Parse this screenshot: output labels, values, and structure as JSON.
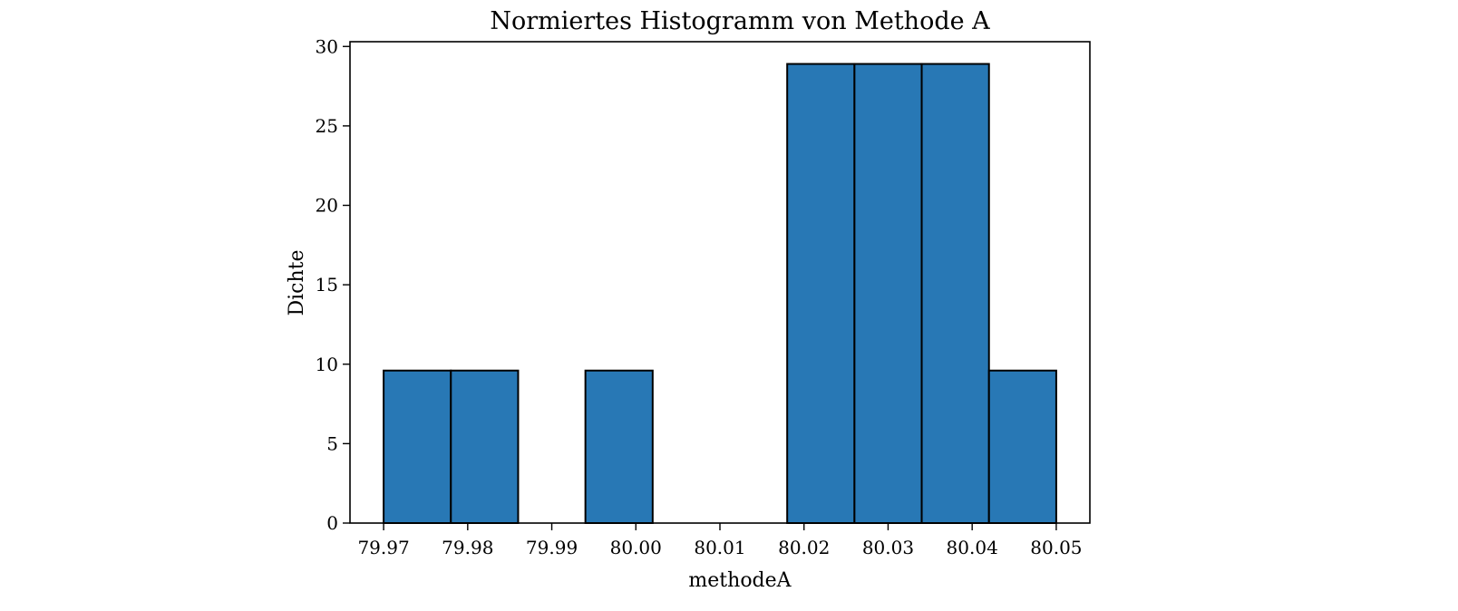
{
  "chart_data": {
    "type": "bar",
    "subtype": "histogram",
    "title": "Normiertes Histogramm von Methode A",
    "xlabel": "methodeA",
    "ylabel": "Dichte",
    "bin_edges": [
      79.97,
      79.978,
      79.986,
      79.994,
      80.002,
      80.01,
      80.018,
      80.026,
      80.034,
      80.042,
      80.05
    ],
    "values": [
      9.6,
      9.6,
      0,
      9.6,
      0,
      0,
      28.9,
      28.9,
      28.9,
      9.6
    ],
    "xlim": [
      79.966,
      80.054
    ],
    "ylim": [
      0,
      30.3
    ],
    "x_ticks": [
      79.97,
      79.98,
      79.99,
      80.0,
      80.01,
      80.02,
      80.03,
      80.04,
      80.05
    ],
    "x_tick_labels": [
      "79.97",
      "79.98",
      "79.99",
      "80.00",
      "80.01",
      "80.02",
      "80.03",
      "80.04",
      "80.05"
    ],
    "y_ticks": [
      0,
      5,
      10,
      15,
      20,
      25,
      30
    ],
    "y_tick_labels": [
      "0",
      "5",
      "10",
      "15",
      "20",
      "25",
      "30"
    ],
    "bar_color": "#2878b5",
    "edge_color": "#000000",
    "grid": false,
    "legend": "none"
  }
}
